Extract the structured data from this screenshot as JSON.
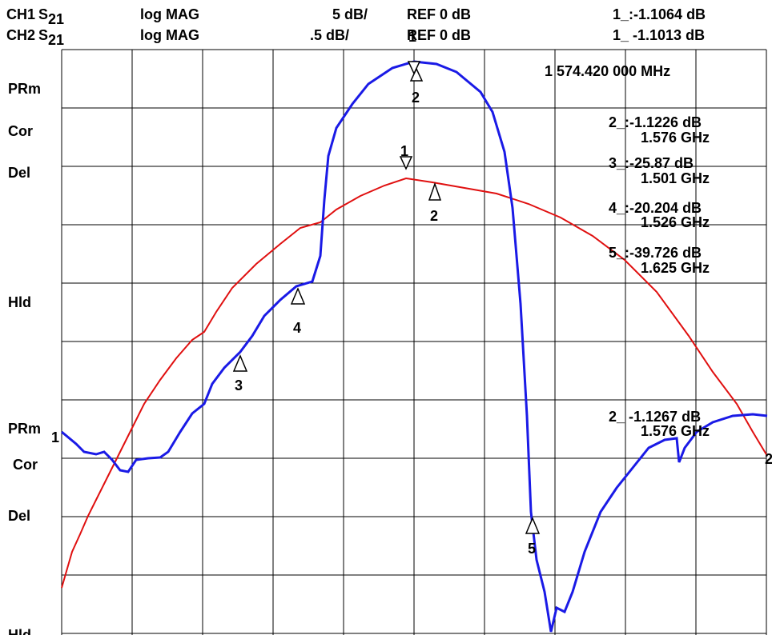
{
  "header": {
    "rows": [
      {
        "channel": "CH1",
        "param": "S",
        "sub": "21",
        "format": "log MAG",
        "scale": "5 dB/",
        "ref": "REF 0 dB",
        "marker": "1_:-1.1064 dB"
      },
      {
        "channel": "CH2",
        "param": "S",
        "sub": "21",
        "format": "log MAG",
        "scale": ".5 dB/",
        "ref": "REF 0 dB",
        "marker": "1_ -1.1013 dB"
      }
    ]
  },
  "marker_readout": {
    "frequency": "1 574.420 000 MHz",
    "items": [
      {
        "value": "2_:-1.1226 dB",
        "freq": "1.576 GHz"
      },
      {
        "value": "3_:-25.87  dB",
        "freq": "1.501 GHz"
      },
      {
        "value": "4_:-20.204 dB",
        "freq": "1.526 GHz"
      },
      {
        "value": "5_:-39.726 dB",
        "freq": "1.625 GHz"
      }
    ]
  },
  "ch2_readout": {
    "value": "2_ -1.1267 dB",
    "freq": "1.576 GHz"
  },
  "side_labels": {
    "upper": [
      "PRm",
      "Cor",
      "Del",
      "Hld"
    ],
    "lower": [
      "PRm",
      "Cor",
      "Del",
      "Hld"
    ]
  },
  "trace_markers": {
    "blue": [
      "1",
      "2",
      "3",
      "4",
      "5"
    ],
    "red": [
      "1",
      "2"
    ],
    "ref_left": "1",
    "ref_right": "2"
  }
}
